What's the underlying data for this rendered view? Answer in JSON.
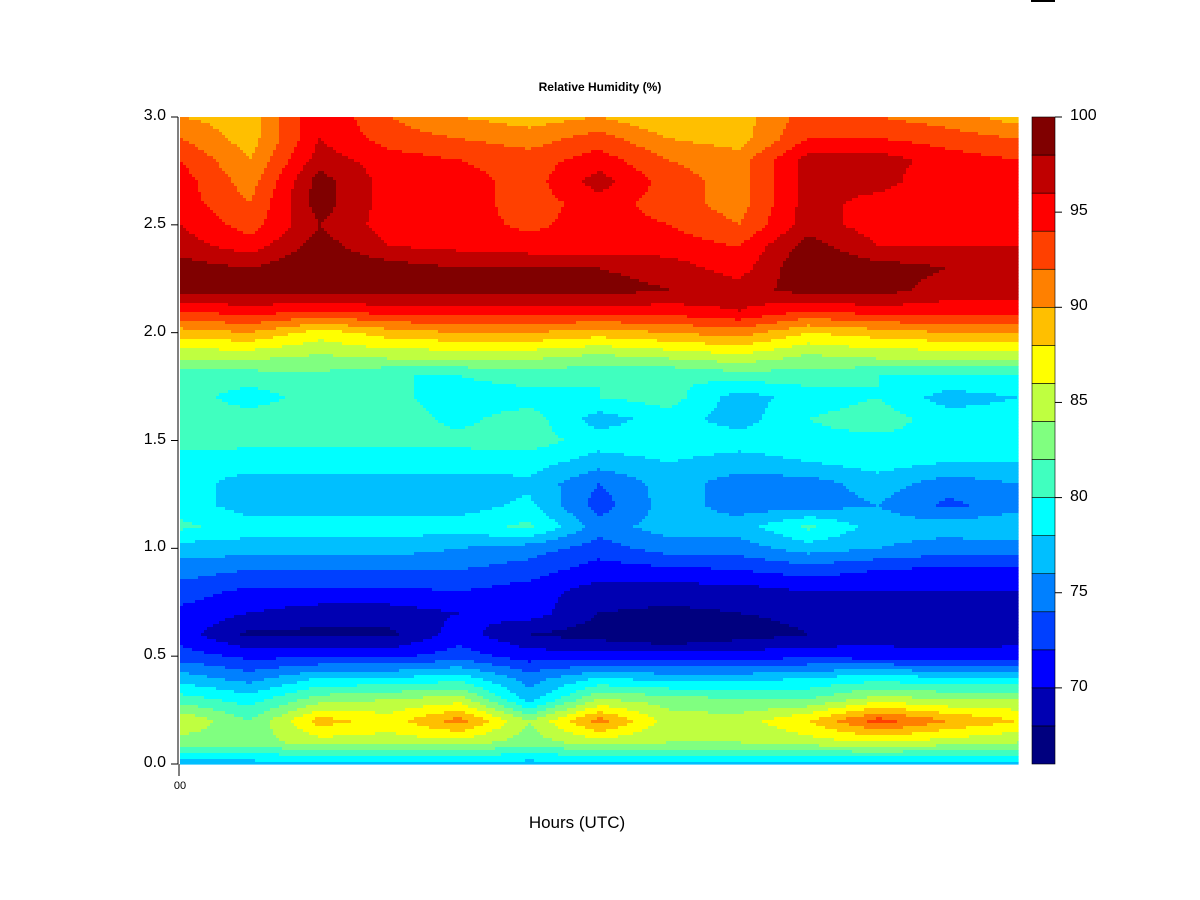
{
  "chart_data": {
    "type": "heatmap",
    "subtype": "filled-contour",
    "title": "Relative Humidity (%)",
    "xlabel": "Hours (UTC)",
    "ylabel": "",
    "x_tick_labels": [
      "00"
    ],
    "y_ticks": [
      0.0,
      0.5,
      1.0,
      1.5,
      2.0,
      2.5,
      3.0
    ],
    "y_tick_labels": [
      "0.0",
      "0.5",
      "1.0",
      "1.5",
      "2.0",
      "2.5",
      "3.0"
    ],
    "ylim": [
      0,
      3.0
    ],
    "y_levels": [
      0.0,
      0.1,
      0.2,
      0.3,
      0.4,
      0.5,
      0.6,
      0.7,
      0.8,
      0.9,
      1.0,
      1.1,
      1.2,
      1.3,
      1.4,
      1.5,
      1.6,
      1.7,
      1.8,
      1.9,
      2.0,
      2.1,
      2.2,
      2.3,
      2.4,
      2.5,
      2.6,
      2.7,
      2.8,
      2.9,
      3.0
    ],
    "z_rows_bottom_to_top": [
      [
        77,
        77,
        77,
        77,
        77,
        77,
        77,
        77,
        77,
        77,
        77,
        77,
        77
      ],
      [
        83,
        83,
        85,
        85,
        85,
        83,
        85,
        84,
        84,
        85,
        86,
        85,
        84
      ],
      [
        86,
        82,
        89,
        87,
        91,
        84,
        91,
        85,
        85,
        88,
        93,
        90,
        88
      ],
      [
        81,
        79,
        83,
        84,
        85,
        77,
        84,
        83,
        82,
        82,
        85,
        84,
        84
      ],
      [
        77,
        75,
        78,
        78,
        79,
        75,
        78,
        77,
        77,
        78,
        79,
        78,
        78
      ],
      [
        73,
        71.5,
        71.5,
        71.5,
        73,
        71,
        71,
        71,
        71,
        71.5,
        71,
        71,
        71
      ],
      [
        71,
        67.5,
        67.5,
        67.5,
        71,
        68,
        67,
        65.5,
        67,
        68,
        69,
        68,
        69
      ],
      [
        71.5,
        70,
        69,
        69,
        70,
        71,
        68,
        67.5,
        68,
        68.5,
        69,
        68,
        69
      ],
      [
        73,
        71.5,
        71.5,
        71.5,
        72,
        71,
        69,
        69,
        69,
        70,
        70,
        70,
        70
      ],
      [
        75,
        74,
        74,
        74,
        74,
        73,
        71,
        71.5,
        72,
        73,
        72,
        71.5,
        71.5
      ],
      [
        77,
        77,
        77,
        77,
        76,
        75,
        73,
        75,
        75,
        77,
        76,
        75,
        75
      ],
      [
        80.5,
        79,
        79,
        79,
        79,
        80.5,
        75,
        77,
        77,
        80.5,
        77,
        77,
        78
      ],
      [
        79,
        77,
        77,
        77,
        77,
        78.5,
        73,
        77,
        75,
        75,
        76,
        73.5,
        75
      ],
      [
        79,
        77,
        77,
        77,
        77,
        77.5,
        74,
        77,
        75,
        75,
        77,
        75,
        76
      ],
      [
        79,
        79,
        79,
        79,
        79,
        79,
        77,
        78,
        77,
        78,
        79,
        78,
        78
      ],
      [
        81,
        80.5,
        80.5,
        80.5,
        80.5,
        81,
        79,
        79.5,
        79,
        79.5,
        79.5,
        79.5,
        80
      ],
      [
        81,
        81,
        81,
        81,
        79.5,
        81,
        77,
        79,
        77,
        80,
        81,
        79,
        79
      ],
      [
        81,
        79,
        81,
        80.5,
        79,
        79,
        80,
        81,
        77,
        79,
        80,
        77,
        78
      ],
      [
        81,
        81,
        81.5,
        80,
        80,
        81,
        80,
        80,
        81,
        81,
        80,
        80,
        80
      ],
      [
        85,
        85,
        84,
        85,
        85,
        85,
        84,
        85,
        86,
        84,
        85,
        85,
        85
      ],
      [
        89,
        90,
        87,
        89,
        90,
        90,
        89,
        90,
        91,
        88,
        89,
        90,
        90
      ],
      [
        94,
        95,
        94,
        95,
        95,
        95,
        95,
        95,
        96,
        94,
        95,
        95,
        95
      ],
      [
        99,
        99,
        99,
        99,
        99,
        99,
        99,
        98,
        97,
        99,
        99,
        97,
        97
      ],
      [
        99,
        98,
        100,
        99,
        98,
        98,
        98,
        97,
        95,
        100,
        99,
        98,
        97
      ],
      [
        97,
        95,
        99,
        96,
        95.5,
        95,
        95,
        95,
        94,
        99,
        96,
        96,
        96
      ],
      [
        96,
        93,
        98,
        95,
        95,
        93.5,
        95,
        94,
        92,
        97,
        95,
        94,
        95
      ],
      [
        95,
        92,
        99,
        95,
        95,
        93,
        95,
        93,
        91,
        97,
        95,
        94,
        94
      ],
      [
        95,
        91,
        99,
        95,
        95,
        93,
        97,
        93,
        91,
        97,
        97,
        94,
        94
      ],
      [
        94,
        90,
        97,
        95,
        94,
        93,
        95,
        92,
        91,
        97,
        97,
        95,
        94
      ],
      [
        92,
        89,
        96,
        93,
        92,
        91,
        93,
        90,
        89,
        94,
        94,
        93,
        92
      ],
      [
        90,
        89,
        96,
        92,
        90,
        89,
        90,
        88,
        89,
        93,
        92,
        91,
        89
      ]
    ],
    "colorbar": {
      "levels": [
        66,
        68,
        70,
        72,
        74,
        76,
        78,
        80,
        82,
        84,
        86,
        88,
        90,
        92,
        94,
        96,
        98,
        100
      ],
      "tick_labels": [
        "70",
        "75",
        "80",
        "85",
        "90",
        "95",
        "100"
      ],
      "colors": [
        "#00007F",
        "#0000B2",
        "#0000FF",
        "#0040FF",
        "#0080FF",
        "#00BFFF",
        "#00FFFF",
        "#40FFBF",
        "#80FF80",
        "#BFFF40",
        "#FFFF00",
        "#FFBF00",
        "#FF8000",
        "#FF4000",
        "#FF0000",
        "#BF0000",
        "#800000"
      ]
    },
    "grid": false,
    "legend": "colorbar-right"
  }
}
